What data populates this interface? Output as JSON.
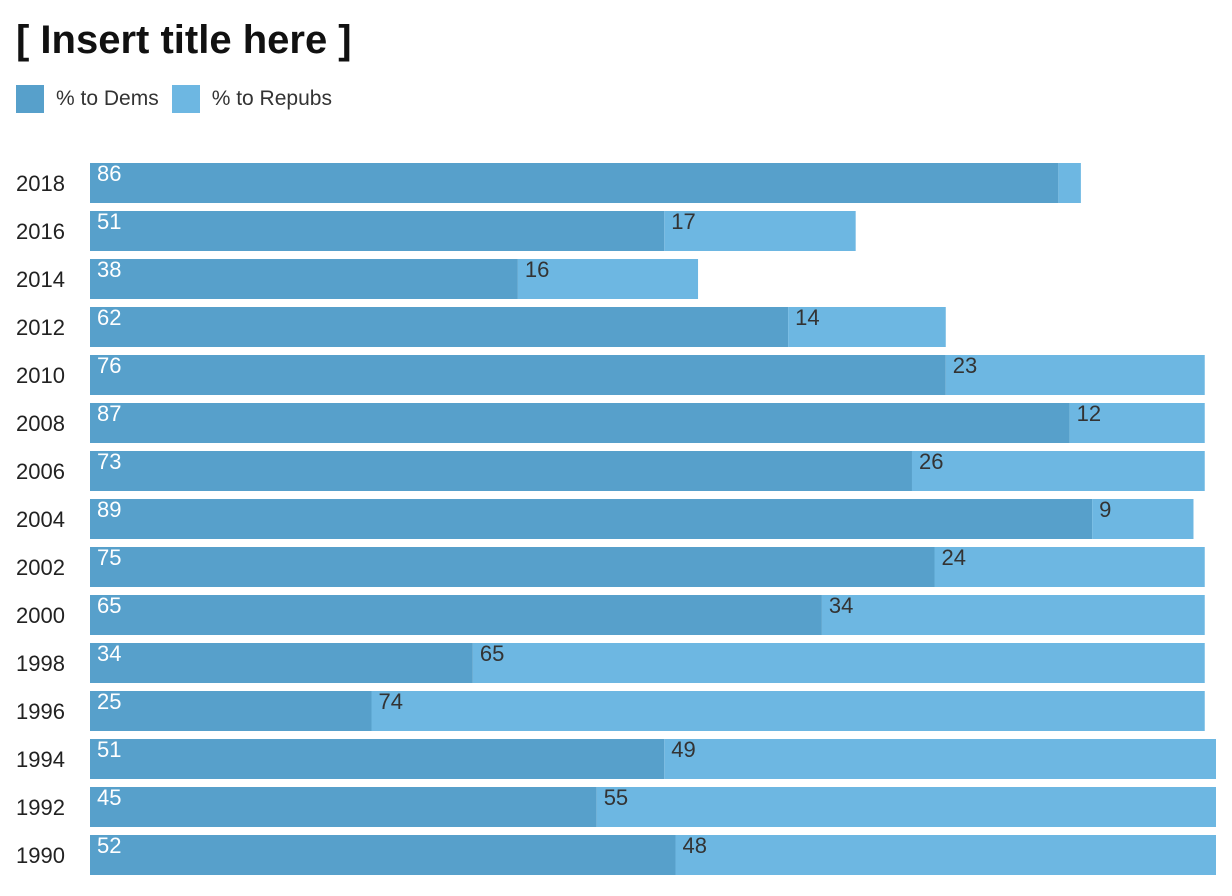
{
  "chart_data": {
    "type": "bar",
    "orientation": "horizontal",
    "stacked": true,
    "title": "[ Insert title here ]",
    "legend_position": "top-left",
    "grid": false,
    "xlim": [
      0,
      100
    ],
    "categories": [
      "2018",
      "2016",
      "2014",
      "2012",
      "2010",
      "2008",
      "2006",
      "2004",
      "2002",
      "2000",
      "1998",
      "1996",
      "1994",
      "1992",
      "1990"
    ],
    "series": [
      {
        "name": "% to Dems",
        "color": "#57a0cb",
        "label_color": "#ffffff",
        "values": [
          86,
          51,
          38,
          62,
          76,
          87,
          73,
          89,
          75,
          65,
          34,
          25,
          51,
          45,
          52
        ],
        "labels": [
          "86",
          "51",
          "38",
          "62",
          "76",
          "87",
          "73",
          "89",
          "75",
          "65",
          "34",
          "25",
          "51",
          "45",
          "52"
        ]
      },
      {
        "name": "% to Repubs",
        "color": "#6db7e2",
        "label_color": "#333333",
        "values": [
          2,
          17,
          16,
          14,
          23,
          12,
          26,
          9,
          24,
          34,
          65,
          74,
          49,
          55,
          48
        ],
        "labels": [
          "",
          "17",
          "16",
          "14",
          "23",
          "12",
          "26",
          "9",
          "24",
          "34",
          "65",
          "74",
          "49",
          "55",
          "48"
        ]
      }
    ]
  }
}
